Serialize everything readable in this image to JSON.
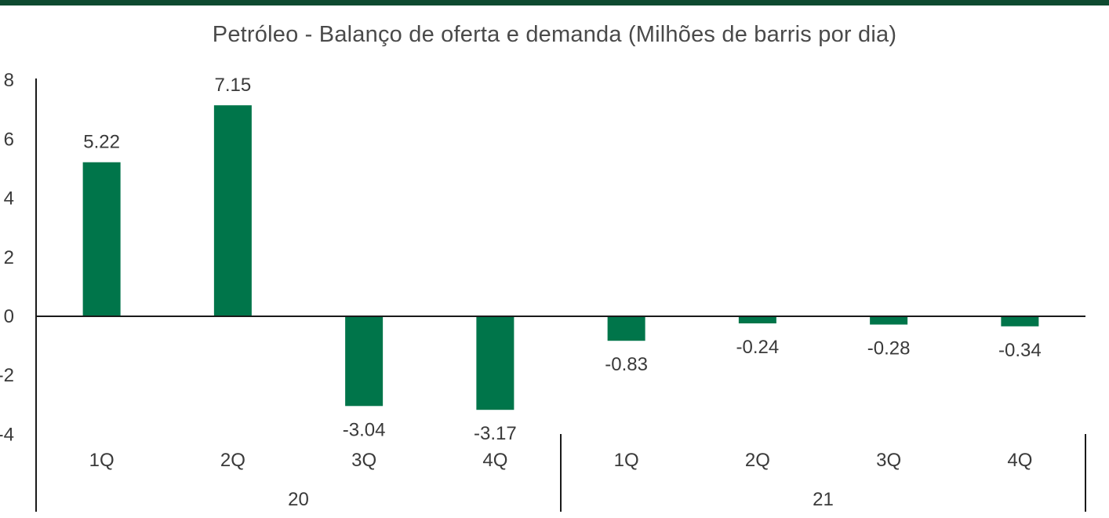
{
  "chart_data": {
    "type": "bar",
    "title": "Petróleo - Balanço de oferta e demanda (Milhões de barris por dia)",
    "xlabel": "",
    "ylabel": "",
    "ylim": [
      -4,
      8
    ],
    "yticks": [
      -4,
      -2,
      0,
      2,
      4,
      6,
      8
    ],
    "ytick_labels": [
      "-4",
      "-2",
      "0",
      "2",
      "4",
      "6",
      "8"
    ],
    "categories": [
      "1Q",
      "2Q",
      "3Q",
      "4Q",
      "1Q",
      "2Q",
      "3Q",
      "4Q"
    ],
    "groups": [
      {
        "label": "20",
        "categories": [
          "1Q",
          "2Q",
          "3Q",
          "4Q"
        ]
      },
      {
        "label": "21",
        "categories": [
          "1Q",
          "2Q",
          "3Q",
          "4Q"
        ]
      }
    ],
    "values": [
      5.22,
      7.15,
      -3.04,
      -3.17,
      -0.83,
      -0.24,
      -0.28,
      -0.34
    ],
    "data_labels": [
      "5.22",
      "7.15",
      "-3.04",
      "-3.17",
      "-0.83",
      "-0.24",
      "-0.28",
      "-0.34"
    ],
    "bar_color": "#00754a",
    "grid": false,
    "legend": "none"
  },
  "colors": {
    "header_band": "#0e4a30",
    "axis": "#1a1a1a"
  }
}
